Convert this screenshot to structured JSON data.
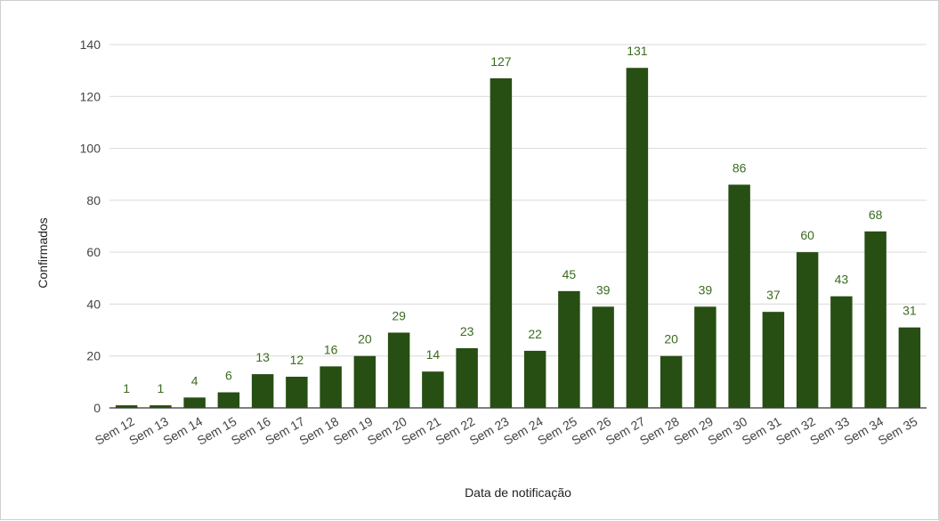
{
  "chart_data": {
    "type": "bar",
    "categories": [
      "Sem 12",
      "Sem 13",
      "Sem 14",
      "Sem 15",
      "Sem 16",
      "Sem 17",
      "Sem 18",
      "Sem 19",
      "Sem 20",
      "Sem 21",
      "Sem 22",
      "Sem 23",
      "Sem 24",
      "Sem 25",
      "Sem 26",
      "Sem 27",
      "Sem 28",
      "Sem 29",
      "Sem 30",
      "Sem 31",
      "Sem 32",
      "Sem 33",
      "Sem 34",
      "Sem 35"
    ],
    "values": [
      1,
      1,
      4,
      6,
      13,
      12,
      16,
      20,
      29,
      14,
      23,
      127,
      22,
      45,
      39,
      131,
      20,
      39,
      86,
      37,
      60,
      43,
      68,
      31
    ],
    "xlabel": "Data de notificação",
    "ylabel": "Confirmados",
    "ylim": [
      0,
      140
    ],
    "yticks": [
      0,
      20,
      40,
      60,
      80,
      100,
      120,
      140
    ],
    "bar_color": "#274e13",
    "label_color": "#3b6b1f",
    "grid": true,
    "legend": "none"
  }
}
